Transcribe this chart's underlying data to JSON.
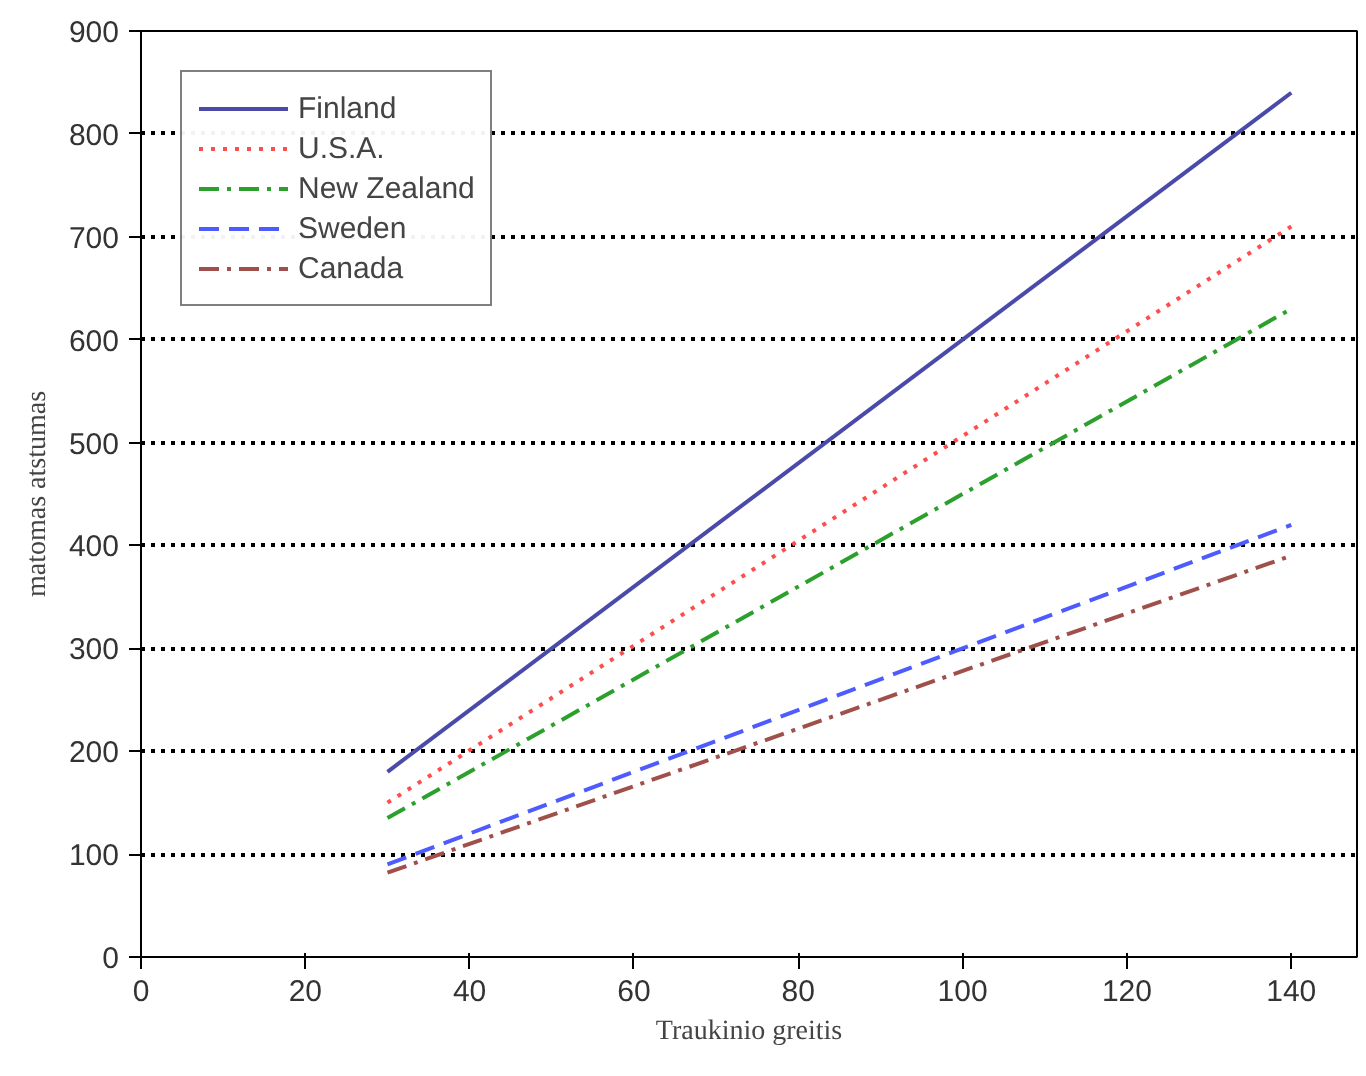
{
  "chart_data": {
    "type": "line",
    "xlabel": "Traukinio greitis",
    "ylabel": "matomas atstumas",
    "x": [
      30,
      140
    ],
    "xlim": [
      0,
      148
    ],
    "ylim": [
      0,
      900
    ],
    "xticks": [
      0,
      20,
      40,
      60,
      80,
      100,
      120,
      140
    ],
    "yticks": [
      0,
      100,
      200,
      300,
      400,
      500,
      600,
      700,
      800,
      900
    ],
    "grid": "y",
    "legend": "top left",
    "marker": "none",
    "series": [
      {
        "name": "Finland",
        "color": "#4a4aa8",
        "values": [
          180,
          840
        ],
        "line_style": "solid"
      },
      {
        "name": "U.S.A.",
        "color": "#ff4d4d",
        "values": [
          150,
          710
        ],
        "line_style": "dotted"
      },
      {
        "name": "New Zealand",
        "color": "#2ca02c",
        "values": [
          135,
          630
        ],
        "line_style": "dashdot"
      },
      {
        "name": "Sweden",
        "color": "#4d5bff",
        "values": [
          90,
          420
        ],
        "line_style": "dashed"
      },
      {
        "name": "Canada",
        "color": "#a0504a",
        "values": [
          82,
          390
        ],
        "line_style": "dashdot"
      }
    ]
  }
}
